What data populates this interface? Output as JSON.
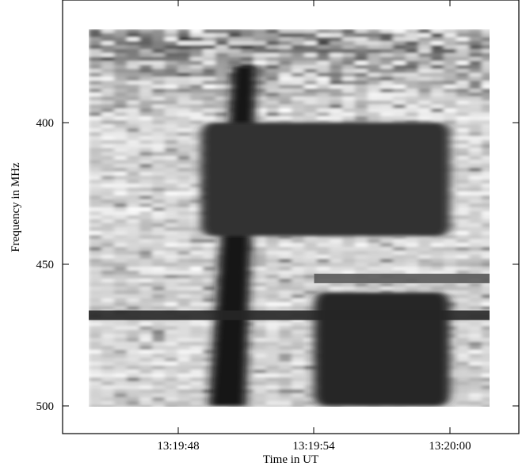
{
  "chart_data": {
    "type": "heatmap",
    "title": "",
    "xlabel": "Time in UT",
    "ylabel": "Frequency in MHz",
    "x_ticks": [
      "13:19:48",
      "13:19:54",
      "13:20:00"
    ],
    "y_ticks": [
      "400",
      "450",
      "500"
    ],
    "y_tick_values": [
      400,
      450,
      500
    ],
    "ylim": [
      367,
      510
    ],
    "y_inverted": true,
    "colormap": "grayscale (white = low, black = high)",
    "features": [
      {
        "name": "narrowband line",
        "freq_mhz": 468,
        "time_span": [
          "start",
          "end"
        ],
        "intensity": 0.85
      },
      {
        "name": "narrowband line",
        "freq_mhz": 455,
        "time_span": [
          "13:19:54",
          "end"
        ],
        "intensity": 0.65
      },
      {
        "name": "drifting burst",
        "time_span": [
          "13:19:49",
          "13:19:51"
        ],
        "freq_range": [
          380,
          500
        ],
        "intensity": 0.9
      },
      {
        "name": "broadband continuum",
        "time_span": [
          "13:19:49",
          "13:20:00"
        ],
        "freq_range": [
          400,
          440
        ],
        "intensity": 0.8
      },
      {
        "name": "broadband continuum",
        "time_span": [
          "13:19:54",
          "13:20:00"
        ],
        "freq_range": [
          460,
          500
        ],
        "intensity": 0.85
      }
    ]
  }
}
